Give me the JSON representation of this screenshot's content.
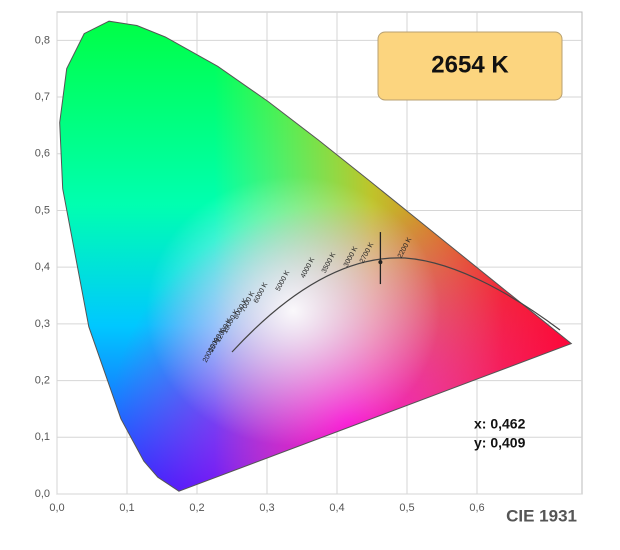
{
  "chart_data": {
    "type": "chromaticity",
    "title": "CIE 1931",
    "badge": "2654 K",
    "point": {
      "x": 0.462,
      "y": 0.409,
      "x_label": "x: 0,462",
      "y_label": "y: 0,409"
    },
    "xlim": [
      0,
      0.75
    ],
    "ylim": [
      0,
      0.85
    ],
    "xticks": [
      {
        "value": 0,
        "label": "0,0"
      },
      {
        "value": 0.1,
        "label": "0,1"
      },
      {
        "value": 0.2,
        "label": "0,2"
      },
      {
        "value": 0.3,
        "label": "0,3"
      },
      {
        "value": 0.4,
        "label": "0,4"
      },
      {
        "value": 0.5,
        "label": "0,5"
      },
      {
        "value": 0.6,
        "label": "0,6"
      }
    ],
    "yticks": [
      {
        "value": 0,
        "label": "0,0"
      },
      {
        "value": 0.1,
        "label": "0,1"
      },
      {
        "value": 0.2,
        "label": "0,2"
      },
      {
        "value": 0.3,
        "label": "0,3"
      },
      {
        "value": 0.4,
        "label": "0,4"
      },
      {
        "value": 0.5,
        "label": "0,5"
      },
      {
        "value": 0.6,
        "label": "0,6"
      },
      {
        "value": 0.7,
        "label": "0,7"
      },
      {
        "value": 0.8,
        "label": "0,8"
      }
    ],
    "grid": true,
    "cct_labels": [
      "2200 K",
      "2700 K",
      "3000 K",
      "3500 K",
      "4000 K",
      "5000 K",
      "6000 K",
      "7000 K",
      "8000 K",
      "10000 K",
      "12000 K",
      "15000 K",
      "20000 K"
    ]
  }
}
